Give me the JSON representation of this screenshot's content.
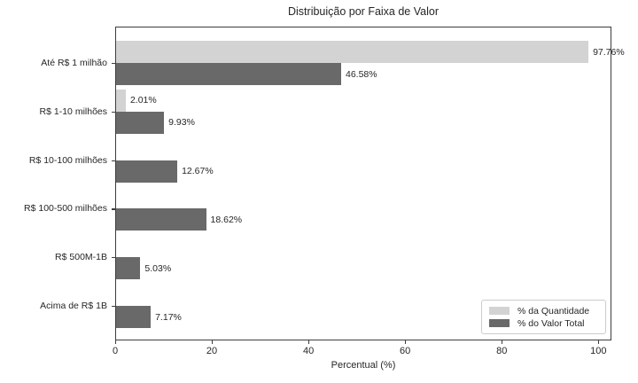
{
  "chart_data": {
    "type": "bar",
    "orientation": "horizontal",
    "title": "Distribuição por Faixa de Valor",
    "xlabel": "Percentual (%)",
    "ylabel": "",
    "categories": [
      "Até R$ 1 milhão",
      "R$ 1-10 milhões",
      "R$ 10-100 milhões",
      "R$ 100-500 milhões",
      "R$ 500M-1B",
      "Acima de R$ 1B"
    ],
    "series": [
      {
        "name": "% da Quantidade",
        "color": "#d3d3d3",
        "values": [
          97.76,
          2.01,
          null,
          null,
          null,
          null
        ]
      },
      {
        "name": "% do Valor Total",
        "color": "#696969",
        "values": [
          46.58,
          9.93,
          12.67,
          18.62,
          5.03,
          7.17
        ]
      }
    ],
    "value_labels": {
      "quantidade": [
        "97.76%",
        "2.01%",
        null,
        null,
        null,
        null
      ],
      "valor_total": [
        "46.58%",
        "9.93%",
        "12.67%",
        "18.62%",
        "5.03%",
        "7.17%"
      ]
    },
    "xticks": [
      0,
      20,
      40,
      60,
      80,
      100
    ],
    "xlim": [
      0,
      102.7
    ],
    "grid": false,
    "legend_position": "lower right",
    "colors": {
      "quantity_bar": "#d3d3d3",
      "value_bar": "#696969",
      "spine": "#3d3d3d",
      "text": "#262626",
      "legend_border": "#cccccc"
    }
  }
}
